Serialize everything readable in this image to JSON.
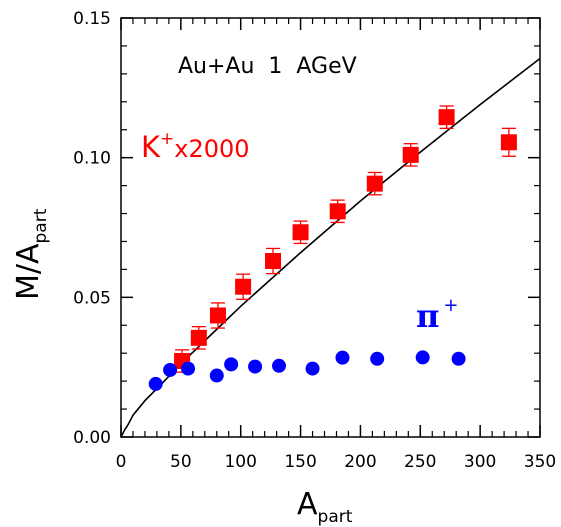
{
  "chart_data": {
    "type": "scatter",
    "xlabel": "A",
    "xlabel_sub": "part",
    "ylabel": "M/A",
    "ylabel_sub": "part",
    "xlim": [
      0,
      350
    ],
    "ylim": [
      0,
      0.15
    ],
    "x_ticks": [
      "0",
      "50",
      "100",
      "150",
      "200",
      "250",
      "300",
      "350"
    ],
    "y_ticks": [
      "0.00",
      "0.05",
      "0.10",
      "0.15"
    ],
    "grid": false,
    "annotation": "Au+Au  1  AGeV",
    "series": [
      {
        "name": "K",
        "name_sup": "+",
        "name_suffix": "x2000",
        "marker": "square",
        "color": "#ff0000",
        "x": [
          51,
          65,
          81,
          102,
          127,
          150,
          181,
          212,
          242,
          272,
          324
        ],
        "y": [
          0.0272,
          0.0355,
          0.0435,
          0.0538,
          0.063,
          0.0733,
          0.0808,
          0.0907,
          0.101,
          0.1145,
          0.1055
        ],
        "err": [
          0.004,
          0.004,
          0.0045,
          0.0045,
          0.0045,
          0.004,
          0.004,
          0.004,
          0.004,
          0.004,
          0.005
        ]
      },
      {
        "name": "π",
        "name_sup": "+",
        "marker": "circle",
        "color": "#0000ff",
        "x": [
          29,
          41,
          56,
          80,
          92,
          112,
          132,
          160,
          185,
          214,
          252,
          282
        ],
        "y": [
          0.019,
          0.024,
          0.0245,
          0.022,
          0.026,
          0.0252,
          0.0255,
          0.0245,
          0.0284,
          0.028,
          0.0285,
          0.028
        ]
      }
    ],
    "fit_curve": {
      "color": "#000000",
      "x": [
        0,
        3,
        6,
        10,
        20,
        35,
        50,
        75,
        100,
        150,
        200,
        250,
        300,
        350
      ],
      "y": [
        0,
        0.0025,
        0.0045,
        0.0078,
        0.013,
        0.0195,
        0.0262,
        0.0365,
        0.0468,
        0.066,
        0.0845,
        0.102,
        0.119,
        0.1355
      ]
    }
  }
}
